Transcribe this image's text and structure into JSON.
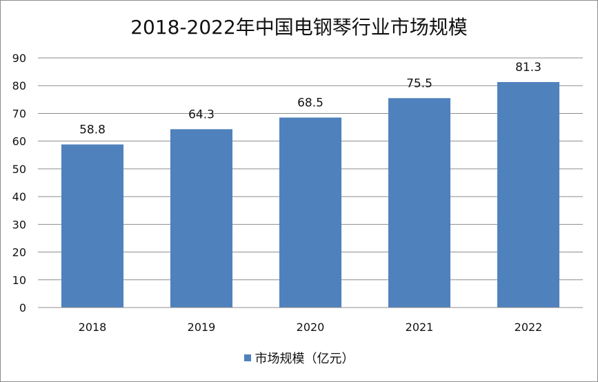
{
  "chart_data": {
    "type": "bar",
    "title": "2018-2022年中国电钢琴行业市场规模",
    "categories": [
      "2018",
      "2019",
      "2020",
      "2021",
      "2022"
    ],
    "series": [
      {
        "name": "市场规模（亿元）",
        "values": [
          58.8,
          64.3,
          68.5,
          75.5,
          81.3
        ]
      }
    ],
    "data_labels": [
      "58.8",
      "64.3",
      "68.5",
      "75.5",
      "81.3"
    ],
    "ylim": [
      0,
      90
    ],
    "yticks": [
      0,
      10,
      20,
      30,
      40,
      50,
      60,
      70,
      80,
      90
    ],
    "grid": true,
    "legend_position": "bottom",
    "colors": {
      "bar": "#4f81bd",
      "grid": "#8c8c8c",
      "axis": "#8c8c8c"
    }
  }
}
